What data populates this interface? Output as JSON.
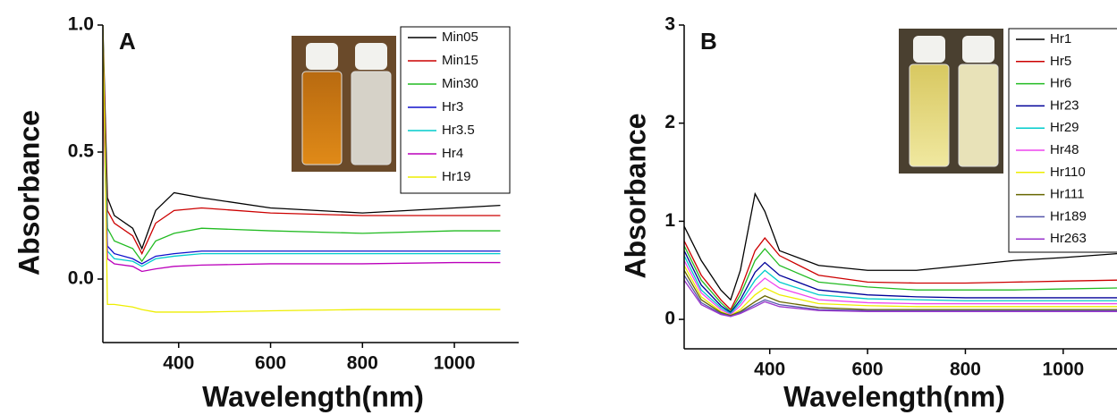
{
  "chart_data": [
    {
      "type": "line",
      "panel_label": "A",
      "x_label": "Wavelength(nm)",
      "y_label": "Absorbance",
      "xlim": [
        235,
        1140
      ],
      "ylim": [
        -0.25,
        1.0
      ],
      "xticks": [
        400,
        600,
        800,
        1000
      ],
      "yticks": [
        {
          "value": 0,
          "label": "0.0"
        },
        {
          "value": 0.5,
          "label": "0.5"
        },
        {
          "value": 1,
          "label": "1.0"
        }
      ],
      "x": [
        235,
        245,
        260,
        300,
        320,
        350,
        390,
        450,
        600,
        800,
        1000,
        1100
      ],
      "series": [
        {
          "name": "Min05",
          "color": "#000000",
          "values": [
            1.0,
            0.32,
            0.25,
            0.2,
            0.12,
            0.27,
            0.34,
            0.32,
            0.28,
            0.26,
            0.28,
            0.29
          ]
        },
        {
          "name": "Min15",
          "color": "#cc0000",
          "values": [
            0.95,
            0.27,
            0.22,
            0.17,
            0.1,
            0.22,
            0.27,
            0.28,
            0.26,
            0.25,
            0.25,
            0.25
          ]
        },
        {
          "name": "Min30",
          "color": "#22bb22",
          "values": [
            0.9,
            0.2,
            0.15,
            0.12,
            0.07,
            0.15,
            0.18,
            0.2,
            0.19,
            0.18,
            0.19,
            0.19
          ]
        },
        {
          "name": "Hr3",
          "color": "#1010cc",
          "values": [
            0.85,
            0.13,
            0.1,
            0.08,
            0.06,
            0.09,
            0.1,
            0.11,
            0.11,
            0.11,
            0.11,
            0.11
          ]
        },
        {
          "name": "Hr3.5",
          "color": "#00cccc",
          "values": [
            0.8,
            0.11,
            0.08,
            0.07,
            0.05,
            0.08,
            0.09,
            0.1,
            0.1,
            0.1,
            0.1,
            0.1
          ]
        },
        {
          "name": "Hr4",
          "color": "#bb00bb",
          "values": [
            0.75,
            0.08,
            0.06,
            0.05,
            0.03,
            0.04,
            0.05,
            0.055,
            0.06,
            0.06,
            0.065,
            0.065
          ]
        },
        {
          "name": "Hr19",
          "color": "#eeee00",
          "values": [
            1.0,
            -0.1,
            -0.1,
            -0.11,
            -0.12,
            -0.13,
            -0.13,
            -0.13,
            -0.125,
            -0.12,
            -0.12,
            -0.12
          ]
        }
      ]
    },
    {
      "type": "line",
      "panel_label": "B",
      "x_label": "Wavelength(nm)",
      "y_label": "Absorbance",
      "xlim": [
        225,
        1110
      ],
      "ylim": [
        -0.3,
        3
      ],
      "xticks": [
        400,
        600,
        800,
        1000
      ],
      "yticks": [
        0,
        1,
        2,
        3
      ],
      "x": [
        225,
        260,
        300,
        320,
        340,
        370,
        390,
        420,
        500,
        600,
        700,
        800,
        900,
        1000,
        1110
      ],
      "series": [
        {
          "name": "Hr1",
          "color": "#000000",
          "values": [
            0.95,
            0.6,
            0.3,
            0.2,
            0.5,
            1.28,
            1.1,
            0.7,
            0.55,
            0.5,
            0.5,
            0.55,
            0.6,
            0.63,
            0.67
          ]
        },
        {
          "name": "Hr5",
          "color": "#cc0000",
          "values": [
            0.8,
            0.45,
            0.2,
            0.1,
            0.3,
            0.7,
            0.83,
            0.65,
            0.45,
            0.38,
            0.37,
            0.37,
            0.38,
            0.39,
            0.4
          ]
        },
        {
          "name": "Hr6",
          "color": "#22bb22",
          "values": [
            0.75,
            0.4,
            0.17,
            0.08,
            0.25,
            0.6,
            0.72,
            0.55,
            0.38,
            0.33,
            0.3,
            0.3,
            0.3,
            0.31,
            0.32
          ]
        },
        {
          "name": "Hr23",
          "color": "#000099",
          "values": [
            0.7,
            0.35,
            0.14,
            0.07,
            0.2,
            0.48,
            0.58,
            0.45,
            0.3,
            0.25,
            0.23,
            0.22,
            0.22,
            0.22,
            0.22
          ]
        },
        {
          "name": "Hr29",
          "color": "#00cccc",
          "values": [
            0.65,
            0.3,
            0.12,
            0.06,
            0.17,
            0.4,
            0.5,
            0.38,
            0.25,
            0.21,
            0.2,
            0.19,
            0.19,
            0.19,
            0.19
          ]
        },
        {
          "name": "Hr48",
          "color": "#ee44ee",
          "values": [
            0.6,
            0.27,
            0.1,
            0.05,
            0.14,
            0.33,
            0.42,
            0.32,
            0.2,
            0.17,
            0.16,
            0.16,
            0.16,
            0.16,
            0.16
          ]
        },
        {
          "name": "Hr110",
          "color": "#eeee00",
          "values": [
            0.55,
            0.23,
            0.08,
            0.04,
            0.1,
            0.25,
            0.32,
            0.25,
            0.16,
            0.14,
            0.13,
            0.13,
            0.13,
            0.13,
            0.13
          ]
        },
        {
          "name": "Hr111",
          "color": "#666600",
          "values": [
            0.5,
            0.2,
            0.07,
            0.04,
            0.08,
            0.18,
            0.24,
            0.18,
            0.12,
            0.1,
            0.1,
            0.1,
            0.1,
            0.1,
            0.1
          ]
        },
        {
          "name": "Hr189",
          "color": "#5555aa",
          "values": [
            0.45,
            0.17,
            0.06,
            0.03,
            0.07,
            0.15,
            0.2,
            0.15,
            0.1,
            0.09,
            0.09,
            0.09,
            0.09,
            0.09,
            0.09
          ]
        },
        {
          "name": "Hr263",
          "color": "#9933cc",
          "values": [
            0.4,
            0.15,
            0.05,
            0.03,
            0.06,
            0.13,
            0.18,
            0.13,
            0.09,
            0.08,
            0.08,
            0.08,
            0.08,
            0.08,
            0.08
          ]
        }
      ]
    }
  ]
}
